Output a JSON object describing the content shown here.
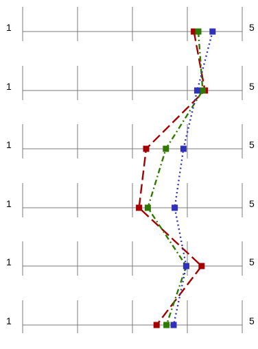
{
  "chart_data": {
    "type": "line",
    "orientation": "vertical-profile",
    "rows": 6,
    "x_scale": {
      "min": 1,
      "max": 5
    },
    "row_labels": [
      {
        "left": "1",
        "right": "5"
      },
      {
        "left": "1",
        "right": "5"
      },
      {
        "left": "1",
        "right": "5"
      },
      {
        "left": "1",
        "right": "5"
      },
      {
        "left": "1",
        "right": "5"
      },
      {
        "left": "1",
        "right": "5"
      }
    ],
    "grid": true,
    "legend": "none",
    "series": [
      {
        "color": "#a40000",
        "line_style": "long-dash",
        "marker": "square",
        "values": [
          4.12,
          4.32,
          3.25,
          3.12,
          4.26,
          3.44
        ]
      },
      {
        "color": "#2e7a00",
        "line_style": "dash-dot",
        "marker": "square",
        "values": [
          4.2,
          4.28,
          3.61,
          3.28,
          3.98,
          3.62
        ]
      },
      {
        "color": "#3030b8",
        "line_style": "dotted",
        "marker": "square",
        "values": [
          4.46,
          4.18,
          3.93,
          3.77,
          3.98,
          3.75
        ]
      }
    ]
  }
}
